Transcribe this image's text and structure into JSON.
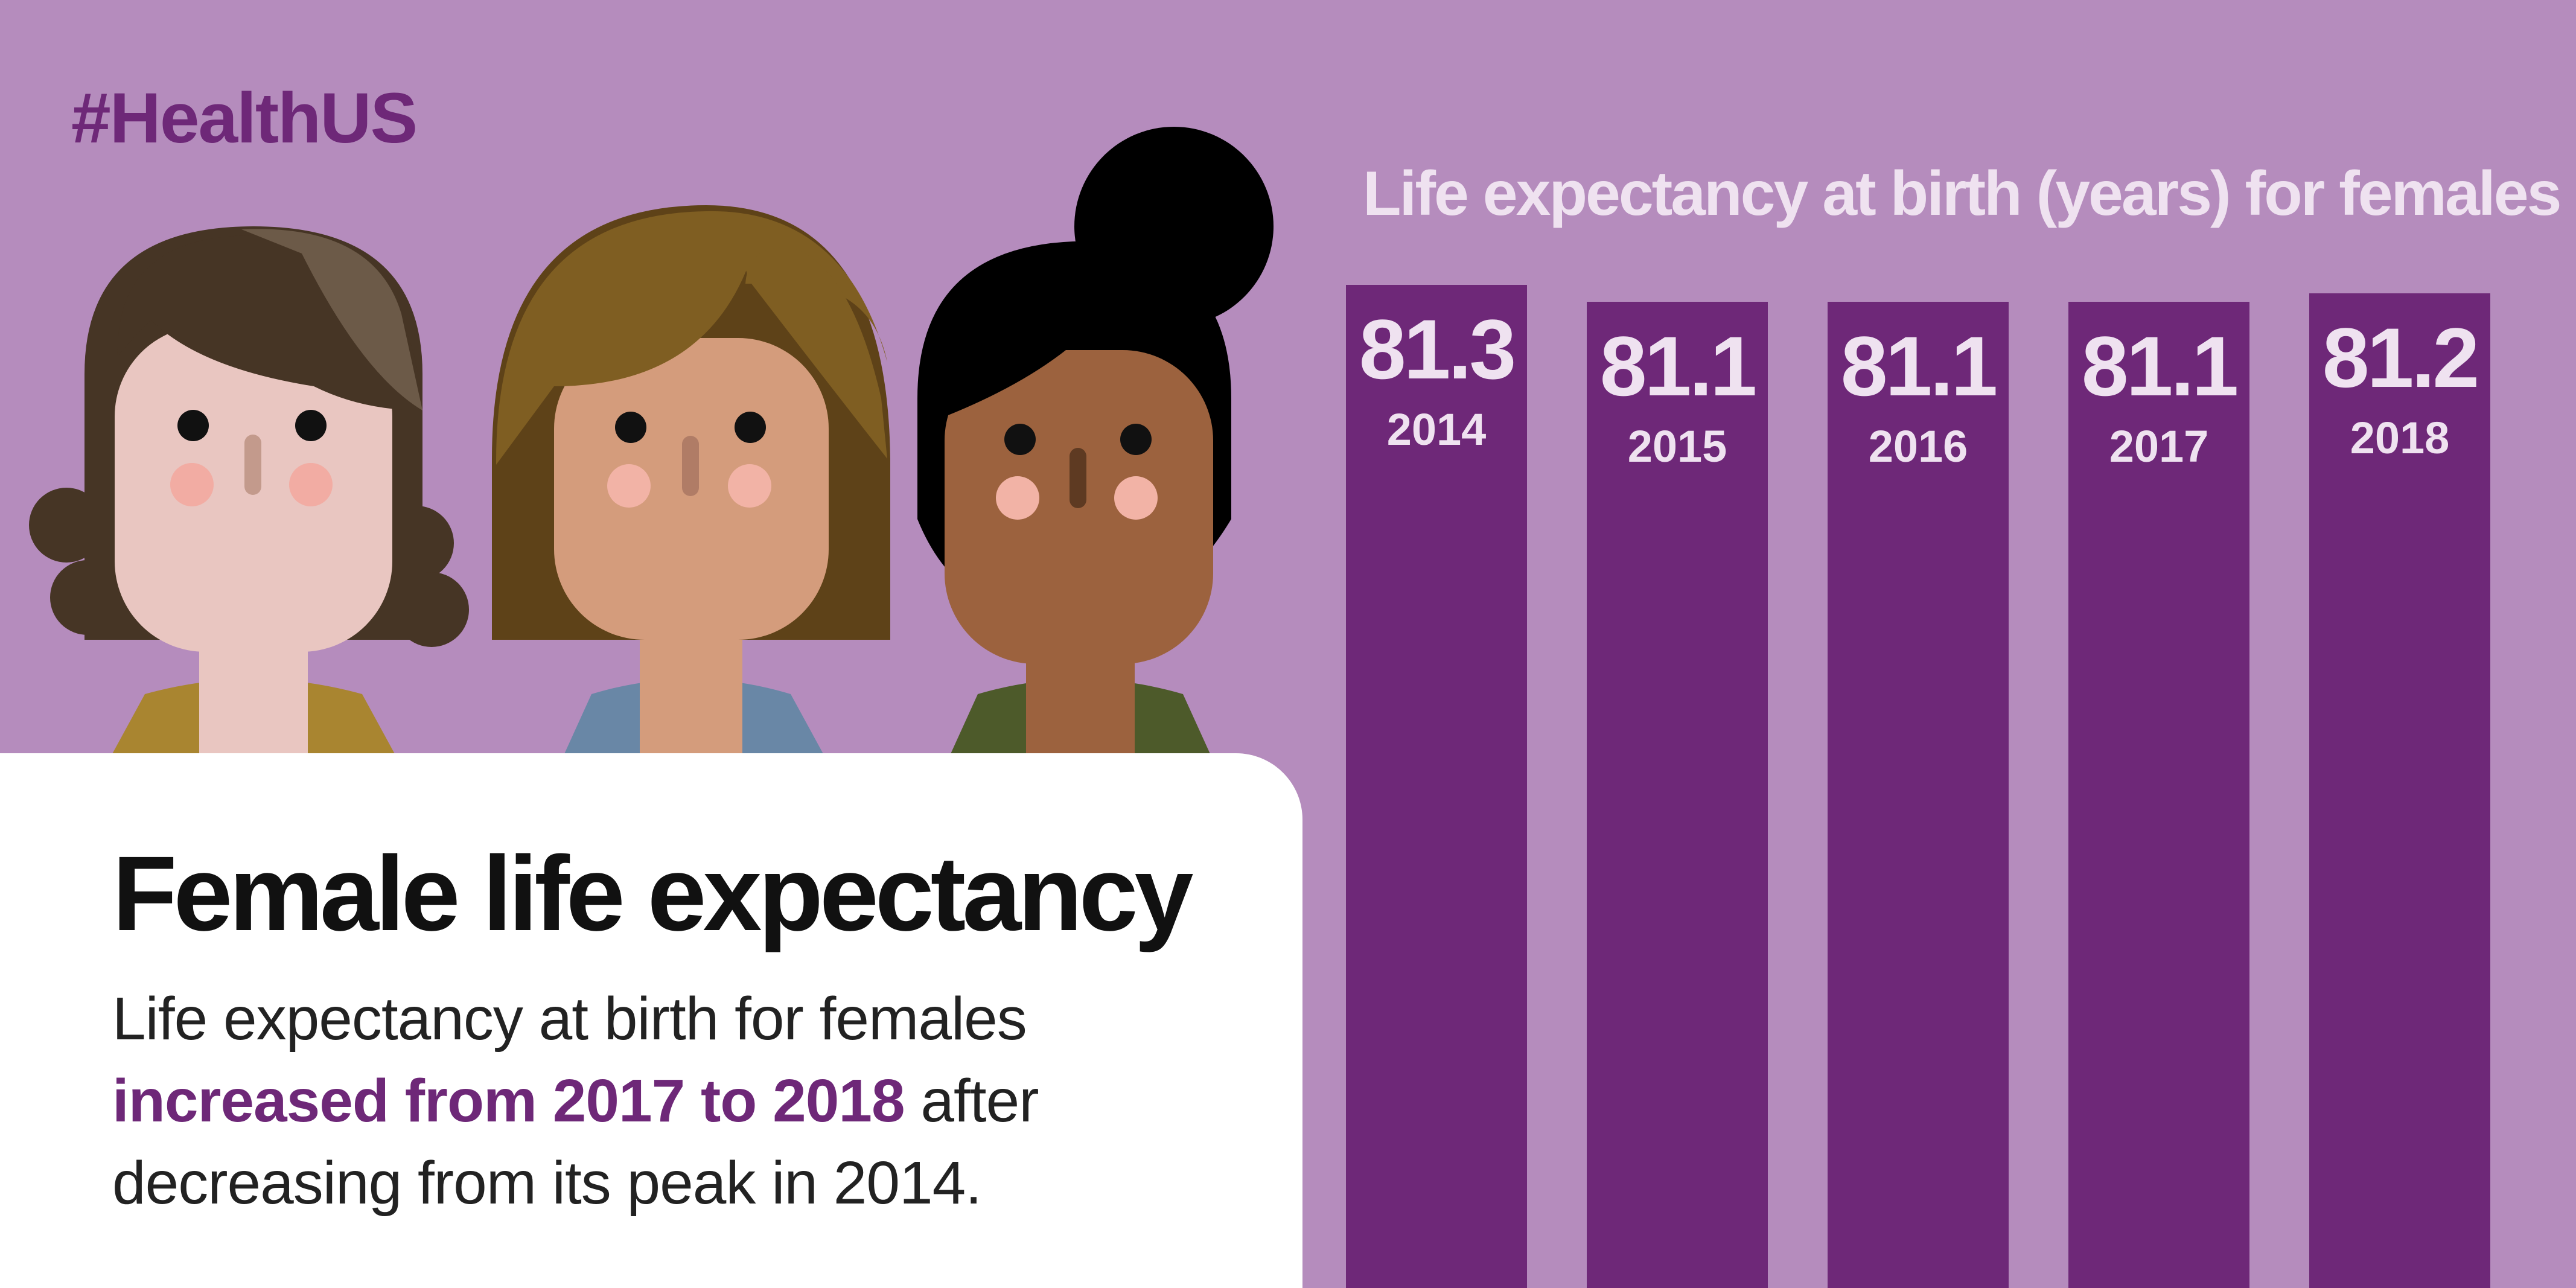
{
  "hashtag": "#HealthUS",
  "card": {
    "title": "Female life expectancy",
    "text_line1": "Life expectancy at birth for females",
    "text_highlight": "increased from 2017 to 2018",
    "text_after": " after",
    "text_line3": "decreasing from its peak in 2014."
  },
  "colors": {
    "background": "#b58cbd",
    "bar": "#6e2878",
    "label": "#efe2f0",
    "accent": "#6e2878"
  },
  "chart_data": {
    "type": "bar",
    "title": "Life expectancy at birth (years) for females",
    "categories": [
      "2014",
      "2015",
      "2016",
      "2017",
      "2018"
    ],
    "values": [
      81.3,
      81.1,
      81.1,
      81.1,
      81.2
    ],
    "value_labels": [
      "81.3",
      "81.1",
      "81.1",
      "81.1",
      "81.2"
    ],
    "xlabel": "",
    "ylabel": "",
    "grid": false,
    "legend": "none"
  }
}
